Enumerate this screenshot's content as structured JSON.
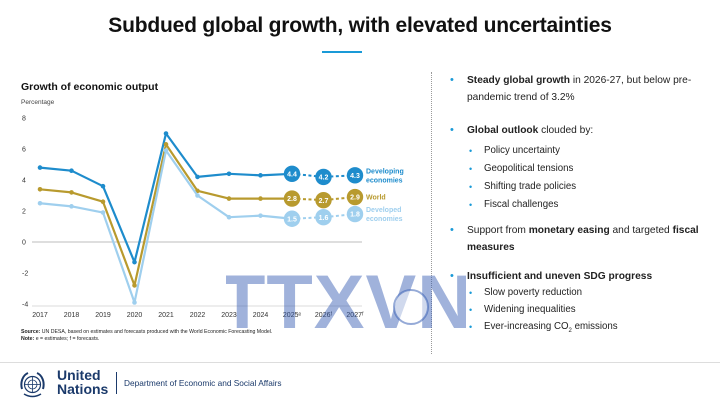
{
  "title": "Subdued global growth, with elevated uncertainties",
  "chart_data": {
    "type": "line",
    "title": "Growth of economic output",
    "ylabel": "Percentage",
    "categories": [
      "2017",
      "2018",
      "2019",
      "2020",
      "2021",
      "2022",
      "2023",
      "2024",
      "2025",
      "2026",
      "2027"
    ],
    "category_labels": [
      "2017",
      "2018",
      "2019",
      "2020",
      "2021",
      "2022",
      "2023",
      "2024",
      "2025ᵉ",
      "2026ᶠ",
      "2027ᶠ"
    ],
    "yticks": [
      8,
      6,
      4,
      2,
      0,
      -2,
      -4
    ],
    "ylim": [
      -4,
      8
    ],
    "grid": false,
    "zero_line": true,
    "actual_count": 9,
    "series": [
      {
        "name": "Developing economies",
        "color": "#1e8ccc",
        "values": [
          4.8,
          4.6,
          3.6,
          -1.3,
          7.0,
          4.2,
          4.4,
          4.3,
          4.4,
          4.2,
          4.3
        ],
        "labels": [
          "4.4",
          "4.2",
          "4.3"
        ]
      },
      {
        "name": "World",
        "color": "#b89a2e",
        "values": [
          3.4,
          3.2,
          2.6,
          -2.8,
          6.3,
          3.3,
          2.8,
          2.8,
          2.8,
          2.7,
          2.9
        ],
        "labels": [
          "2.8",
          "2.7",
          "2.9"
        ]
      },
      {
        "name": "Developed economies",
        "color": "#9fcfee",
        "values": [
          2.5,
          2.3,
          1.9,
          -3.9,
          5.9,
          3.0,
          1.6,
          1.7,
          1.5,
          1.6,
          1.8
        ],
        "labels": [
          "1.5",
          "1.6",
          "1.8"
        ]
      }
    ],
    "legend": [
      {
        "lines": [
          "Developing",
          "economies"
        ],
        "color": "#1e8ccc"
      },
      {
        "lines": [
          "World"
        ],
        "color": "#b89a2e"
      },
      {
        "lines": [
          "Developed",
          "economies"
        ],
        "color": "#9fcfee"
      }
    ]
  },
  "source": {
    "label": "Source:",
    "text": "UN DESA, based on estimates and forecasts produced with the World Economic Forecasting Model.",
    "note_label": "Note:",
    "note": "e = estimates; f = forecasts."
  },
  "bullets": {
    "b1": {
      "strong": "Steady global growth",
      "rest": " in 2026-27, but below pre-pandemic trend of 3.2%"
    },
    "b2": {
      "strong": "Global outlook",
      "rest": " clouded by:",
      "subs": [
        "Policy uncertainty",
        "Geopolitical tensions",
        "Shifting trade policies",
        "Fiscal challenges"
      ]
    },
    "b3": {
      "pre": "Support from ",
      "strong1": "monetary easing",
      "mid": " and targeted ",
      "strong2": "fiscal measures"
    },
    "b4": {
      "strong": "Insufficient and uneven SDG progress",
      "subs": [
        "Slow poverty reduction",
        "Widening inequalities"
      ],
      "sub_last_pre": "Ever-increasing CO",
      "sub_last_sub": "2",
      "sub_last_post": " emissions"
    }
  },
  "footer": {
    "org_line1": "United",
    "org_line2": "Nations",
    "dept": "Department of Economic and Social Affairs"
  },
  "watermark": {
    "text": "TTXVN"
  },
  "colors": {
    "accent": "#1a9ad7",
    "un_blue": "#1b3a6b"
  }
}
